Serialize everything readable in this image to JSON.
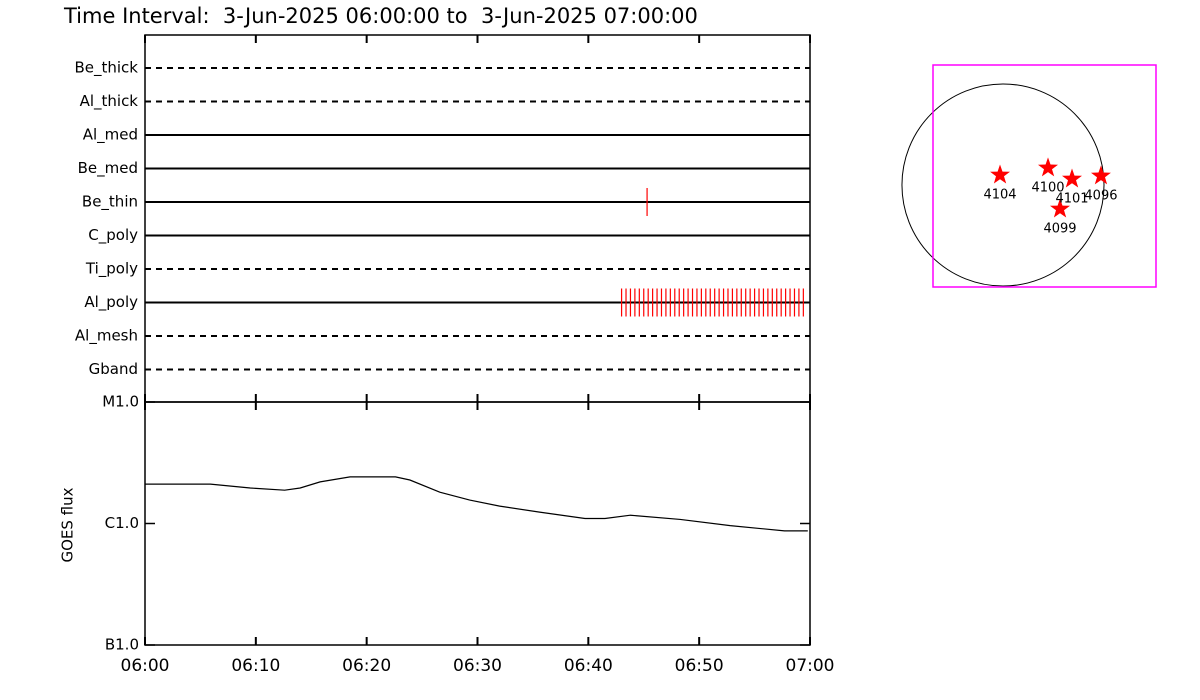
{
  "chart_data": [
    {
      "type": "timeline",
      "title": "Time Interval:  3-Jun-2025 06:00:00 to  3-Jun-2025 07:00:00",
      "xlim": [
        0,
        60
      ],
      "xticks": [
        0,
        10,
        20,
        30,
        40,
        50,
        60
      ],
      "color": "#ff0000",
      "rows": [
        {
          "name": "Be_thick",
          "line_style": "dashed",
          "events": []
        },
        {
          "name": "Al_thick",
          "line_style": "dashed",
          "events": []
        },
        {
          "name": "Al_med",
          "line_style": "solid",
          "events": []
        },
        {
          "name": "Be_med",
          "line_style": "solid",
          "events": []
        },
        {
          "name": "Be_thin",
          "line_style": "solid",
          "events": [
            45.3
          ]
        },
        {
          "name": "C_poly",
          "line_style": "solid",
          "events": []
        },
        {
          "name": "Ti_poly",
          "line_style": "dashed",
          "events": []
        },
        {
          "name": "Al_poly",
          "line_style": "solid",
          "events": [
            43.0,
            43.4,
            43.8,
            44.2,
            44.6,
            45.0,
            45.4,
            45.8,
            46.2,
            46.6,
            47.0,
            47.4,
            47.8,
            48.2,
            48.6,
            49.0,
            49.4,
            49.8,
            50.2,
            50.6,
            51.0,
            51.4,
            51.8,
            52.2,
            52.6,
            53.0,
            53.4,
            53.8,
            54.2,
            54.6,
            55.0,
            55.4,
            55.8,
            56.2,
            56.6,
            57.0,
            57.4,
            57.8,
            58.2,
            58.6,
            59.0,
            59.4
          ]
        },
        {
          "name": "Al_mesh",
          "line_style": "dashed",
          "events": []
        },
        {
          "name": "Gband",
          "line_style": "dashed",
          "events": []
        }
      ]
    },
    {
      "type": "line",
      "ylabel": "GOES flux",
      "log_scale": true,
      "color": "#000000",
      "xlim": [
        0,
        60
      ],
      "xticks": [
        {
          "value": 0,
          "label": "06:00"
        },
        {
          "value": 10,
          "label": "06:10"
        },
        {
          "value": 20,
          "label": "06:20"
        },
        {
          "value": 30,
          "label": "06:30"
        },
        {
          "value": 40,
          "label": "06:40"
        },
        {
          "value": 50,
          "label": "06:50"
        },
        {
          "value": 60,
          "label": "07:00"
        }
      ],
      "ylim": [
        1e-07,
        1e-05
      ],
      "yticks": [
        {
          "value": 1e-07,
          "label": "B1.0"
        },
        {
          "value": 1e-06,
          "label": "C1.0"
        },
        {
          "value": 1e-05,
          "label": "M1.0"
        }
      ],
      "x": [
        0,
        5.9,
        9.5,
        12.6,
        14.0,
        15.8,
        18.5,
        22.6,
        23.9,
        26.6,
        29.3,
        32.0,
        35.6,
        39.7,
        41.5,
        43.8,
        48.3,
        52.8,
        57.7,
        59.8
      ],
      "values": [
        2.11e-06,
        2.11e-06,
        1.96e-06,
        1.88e-06,
        1.96e-06,
        2.2e-06,
        2.42e-06,
        2.42e-06,
        2.28e-06,
        1.81e-06,
        1.56e-06,
        1.39e-06,
        1.24e-06,
        1.1e-06,
        1.1e-06,
        1.17e-06,
        1.08e-06,
        9.6e-07,
        8.7e-07,
        8.7e-07
      ]
    },
    {
      "type": "scatter",
      "frame_color": "#ff00ff",
      "color": "#ff0000",
      "xlim": [
        -665,
        1454
      ],
      "ylim": [
        -969,
        1140
      ],
      "disk_radius": 960,
      "labels": [
        "4104",
        "4100",
        "4101",
        "4096",
        "4099"
      ],
      "x": [
        -28,
        428,
        656,
        931,
        542
      ],
      "y": [
        95,
        162,
        57,
        86,
        -228
      ]
    }
  ]
}
